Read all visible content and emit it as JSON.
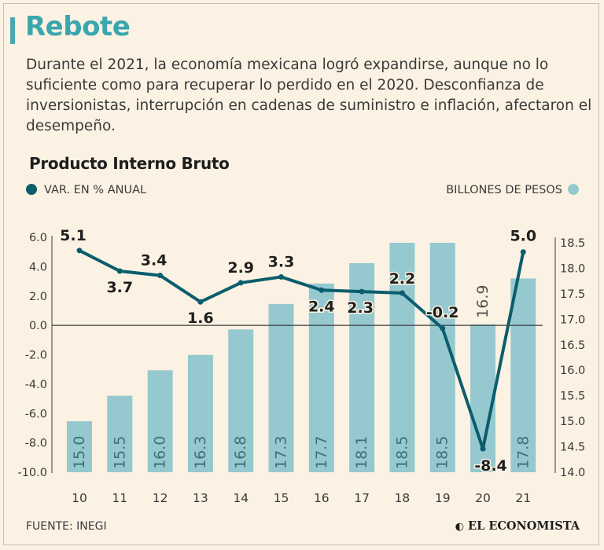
{
  "header": {
    "title": "Rebote",
    "description": "Durante el 2021, la economía mexicana logró expandirse, aunque no lo suficiente como para recuperar lo perdido en el 2020. Desconfianza de inversionistas, interrupción en cadenas de suministro e inflación, afectaron el desempeño."
  },
  "legend": {
    "line_label": "VAR. EN % ANUAL",
    "bar_label": "BILLONES DE PESOS"
  },
  "footer": {
    "source": "FUENTE: INEGI",
    "brand": "EL ECONOMISTA",
    "brand_icon": "e-logo-icon"
  },
  "colors": {
    "accent": "#3aa7ae",
    "line": "#0c5d6c",
    "bar": "#95c9cf",
    "background": "#fbf2e3"
  },
  "chart_data": {
    "type": "bar",
    "title": "Producto Interno Bruto",
    "categories": [
      "10",
      "11",
      "12",
      "13",
      "14",
      "15",
      "16",
      "17",
      "18",
      "19",
      "20",
      "21"
    ],
    "series": [
      {
        "name": "BILLONES DE PESOS",
        "type": "bar",
        "axis": "right",
        "values": [
          15.0,
          15.5,
          16.0,
          16.3,
          16.8,
          17.3,
          17.7,
          18.1,
          18.5,
          18.5,
          16.9,
          17.8
        ],
        "labels": [
          "15.0",
          "15.5",
          "16.0",
          "16.3",
          "16.8",
          "17.3",
          "17.7",
          "18.1",
          "18.5",
          "18.5",
          "16.9",
          "17.8"
        ]
      },
      {
        "name": "VAR. EN % ANUAL",
        "type": "line",
        "axis": "left",
        "values": [
          5.1,
          3.7,
          3.4,
          1.6,
          2.9,
          3.3,
          2.4,
          2.3,
          2.2,
          -0.2,
          -8.4,
          5.0
        ],
        "labels": [
          "5.1",
          "3.7",
          "3.4",
          "1.6",
          "2.9",
          "3.3",
          "2.4",
          "2.3",
          "2.2",
          "-0.2",
          "-8.4",
          "5.0"
        ]
      }
    ],
    "y_left": {
      "range": [
        -10,
        6
      ],
      "ticks": [
        "6.0",
        "4.0",
        "2.0",
        "0.0",
        "-2.0",
        "-4.0",
        "-6.0",
        "-8.0",
        "-10.0"
      ],
      "tick_values": [
        6,
        4,
        2,
        0,
        -2,
        -4,
        -6,
        -8,
        -10
      ]
    },
    "y_right": {
      "range": [
        14.0,
        18.5
      ],
      "ticks": [
        "18.5",
        "18.0",
        "17.5",
        "17.0",
        "16.5",
        "16.0",
        "15.5",
        "15.0",
        "14.5",
        "14.0"
      ],
      "tick_values": [
        18.5,
        18.0,
        17.5,
        17.0,
        16.5,
        16.0,
        15.5,
        15.0,
        14.5,
        14.0
      ]
    },
    "grid": false,
    "legend_position": "top"
  }
}
